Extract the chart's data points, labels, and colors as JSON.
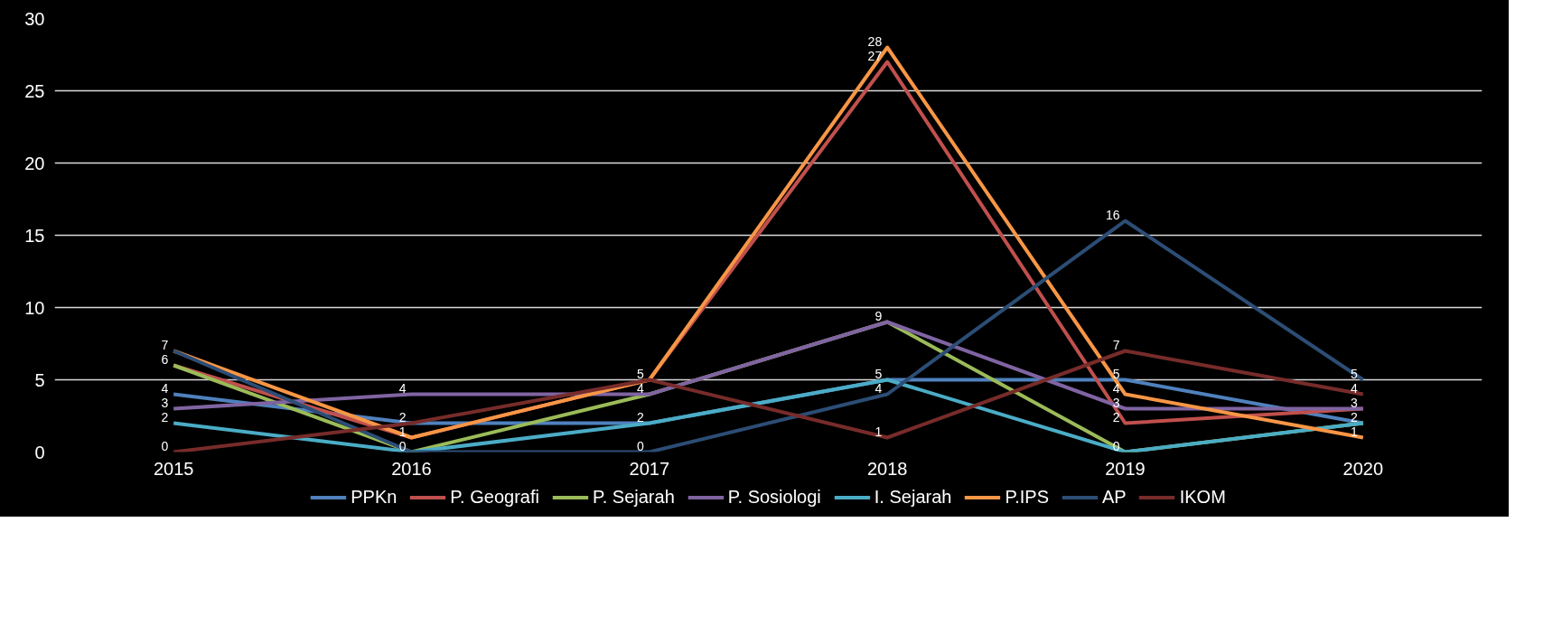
{
  "chart_data": {
    "type": "line",
    "categories": [
      "2015",
      "2016",
      "2017",
      "2018",
      "2019",
      "2020"
    ],
    "ylim": [
      0,
      30
    ],
    "yticks": [
      0,
      5,
      10,
      15,
      20,
      25,
      30
    ],
    "grid": "y",
    "legend": "bottom",
    "marker": "none",
    "line_style": "solid",
    "series": [
      {
        "name": "PPKn",
        "color": "#4f81bd",
        "values": [
          4,
          2,
          2,
          5,
          5,
          2
        ],
        "value_labels": [
          "4",
          "2",
          "2",
          "5",
          "5",
          "2"
        ]
      },
      {
        "name": "P. Geografi",
        "color": "#c0504d",
        "values": [
          6,
          1,
          5,
          27,
          2,
          3
        ],
        "value_labels": [
          "6",
          "1",
          "5",
          "27",
          "2",
          "3"
        ]
      },
      {
        "name": "P. Sejarah",
        "color": "#9bbb59",
        "values": [
          6,
          0,
          4,
          9,
          0,
          2
        ],
        "value_labels": [
          null,
          "0",
          "4",
          "9",
          "0",
          null
        ]
      },
      {
        "name": "P. Sosiologi",
        "color": "#8064a2",
        "values": [
          3,
          4,
          4,
          9,
          3,
          3
        ],
        "value_labels": [
          "3",
          "4",
          null,
          null,
          "3",
          null
        ]
      },
      {
        "name": "I. Sejarah",
        "color": "#4bacc6",
        "values": [
          2,
          0,
          2,
          5,
          0,
          2
        ],
        "value_labels": [
          "2",
          null,
          null,
          null,
          null,
          null
        ]
      },
      {
        "name": "P.IPS",
        "color": "#f79646",
        "values": [
          7,
          1,
          5,
          28,
          4,
          1
        ],
        "value_labels": [
          "7",
          null,
          null,
          "28",
          "4",
          "1"
        ]
      },
      {
        "name": "AP",
        "color": "#2c4d75",
        "values": [
          7,
          0,
          0,
          4,
          16,
          5
        ],
        "value_labels": [
          null,
          null,
          "0",
          "4",
          "16",
          "5"
        ]
      },
      {
        "name": "IKOM",
        "color": "#772c2a",
        "values": [
          0,
          2,
          5,
          1,
          7,
          4
        ],
        "value_labels": [
          "0",
          null,
          null,
          "1",
          "7",
          "4"
        ]
      }
    ]
  }
}
